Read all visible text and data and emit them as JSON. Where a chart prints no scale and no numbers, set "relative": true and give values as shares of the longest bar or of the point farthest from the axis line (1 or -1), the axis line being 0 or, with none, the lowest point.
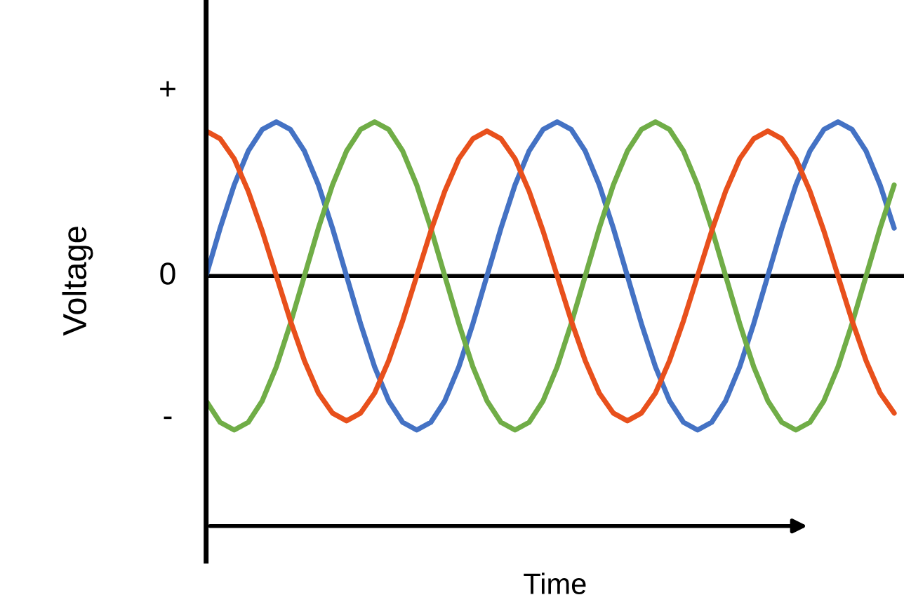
{
  "chart_data": {
    "type": "line",
    "xlabel": "Time",
    "ylabel": "Voltage",
    "relative": true,
    "categories": [
      null,
      null,
      null,
      null,
      null,
      null,
      null,
      null,
      null,
      null,
      null,
      null,
      null,
      null,
      null,
      null,
      null,
      null,
      null,
      null,
      null,
      null,
      null,
      null,
      null,
      null,
      null,
      null,
      null,
      null,
      null,
      null,
      null,
      null,
      null,
      null,
      null,
      null,
      null,
      null,
      null,
      null,
      null,
      null,
      null,
      null,
      null,
      null,
      null,
      null
    ],
    "series": [
      {
        "color": "#4472c4",
        "values": [
          0,
          0.31,
          0.59,
          0.81,
          0.95,
          1,
          0.95,
          0.81,
          0.59,
          0.31,
          0,
          -0.31,
          -0.59,
          -0.81,
          -0.95,
          -1,
          -0.95,
          -0.81,
          -0.59,
          -0.31,
          0,
          0.31,
          0.59,
          0.81,
          0.95,
          1,
          0.95,
          0.81,
          0.59,
          0.31,
          0,
          -0.31,
          -0.59,
          -0.81,
          -0.95,
          -1,
          -0.95,
          -0.81,
          -0.59,
          -0.31,
          0,
          0.31,
          0.59,
          0.81,
          0.95,
          1,
          0.95,
          0.81,
          0.59,
          0.31
        ]
      },
      {
        "color": "#70ad47",
        "values": [
          -0.81,
          -0.95,
          -1,
          -0.95,
          -0.81,
          -0.59,
          -0.31,
          0,
          0.31,
          0.59,
          0.81,
          0.95,
          1,
          0.95,
          0.81,
          0.59,
          0.31,
          0,
          -0.31,
          -0.59,
          -0.81,
          -0.95,
          -1,
          -0.95,
          -0.81,
          -0.59,
          -0.31,
          0,
          0.31,
          0.59,
          0.81,
          0.95,
          1,
          0.95,
          0.81,
          0.59,
          0.31,
          0,
          -0.31,
          -0.59,
          -0.81,
          -0.95,
          -1,
          -0.95,
          -0.81,
          -0.59,
          -0.31,
          0,
          0.31,
          0.59
        ]
      },
      {
        "color": "#e8501c",
        "values": [
          0.94,
          0.89,
          0.76,
          0.55,
          0.29,
          0,
          -0.29,
          -0.55,
          -0.76,
          -0.89,
          -0.94,
          -0.89,
          -0.76,
          -0.55,
          -0.29,
          0,
          0.29,
          0.55,
          0.76,
          0.89,
          0.94,
          0.89,
          0.76,
          0.55,
          0.29,
          0,
          -0.29,
          -0.55,
          -0.76,
          -0.89,
          -0.94,
          -0.89,
          -0.76,
          -0.55,
          -0.29,
          0,
          0.29,
          0.55,
          0.76,
          0.89,
          0.94,
          0.89,
          0.76,
          0.55,
          0.29,
          0,
          -0.29,
          -0.55,
          -0.76,
          -0.89
        ]
      }
    ],
    "annotations": [
      "+",
      "0",
      "-"
    ],
    "ref_lines": [
      {
        "axis": "y",
        "value": 0,
        "color": "#000000"
      }
    ],
    "tick_labels": false,
    "grid": false
  }
}
